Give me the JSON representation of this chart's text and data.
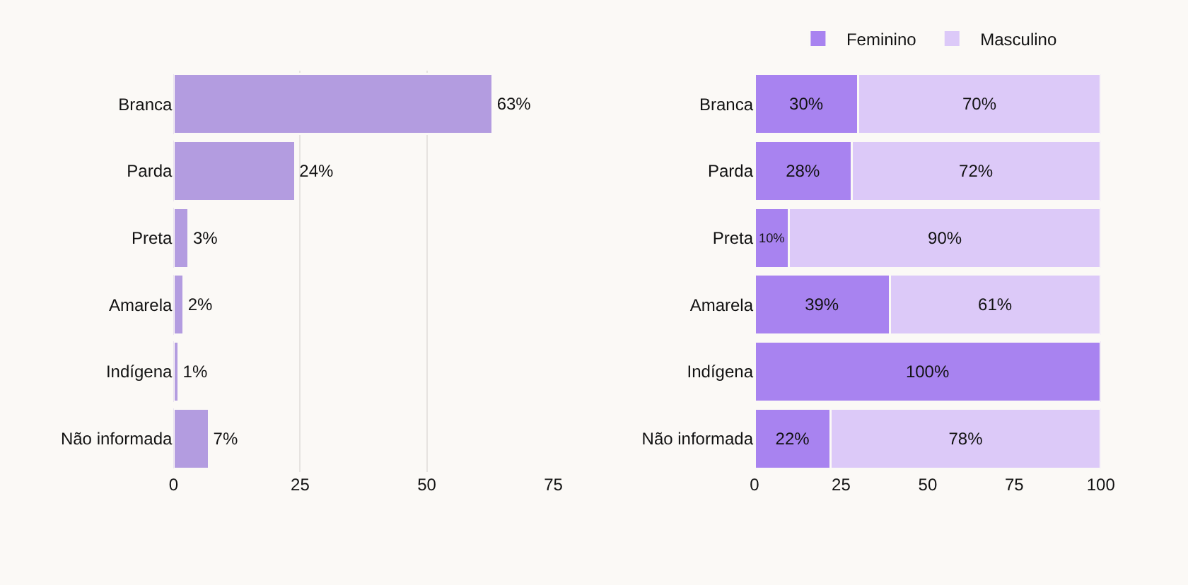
{
  "chart_data": [
    {
      "type": "bar",
      "orientation": "horizontal",
      "categories": [
        "Branca",
        "Parda",
        "Preta",
        "Amarela",
        "Indígena",
        "Não informada"
      ],
      "series": [
        {
          "color": "#b39ce0",
          "values": [
            63,
            24,
            3,
            2,
            1,
            7
          ],
          "value_labels": [
            "63%",
            "24%",
            "3%",
            "2%",
            "1%",
            "7%"
          ]
        }
      ],
      "xlim": [
        0,
        75
      ],
      "xticks": [
        0,
        25,
        50,
        75
      ],
      "grid": "x",
      "legend": false
    },
    {
      "type": "bar",
      "orientation": "horizontal",
      "stacked": true,
      "categories": [
        "Branca",
        "Parda",
        "Preta",
        "Amarela",
        "Indígena",
        "Não informada"
      ],
      "series": [
        {
          "name": "Feminino",
          "color": "#a883f0",
          "values": [
            30,
            28,
            10,
            39,
            100,
            22
          ],
          "value_labels": [
            "30%",
            "28%",
            "10%",
            "39%",
            "100%",
            "22%"
          ]
        },
        {
          "name": "Masculino",
          "color": "#dcc9f8",
          "values": [
            70,
            72,
            90,
            61,
            null,
            78
          ],
          "value_labels": [
            "70%",
            "72%",
            "90%",
            "61%",
            null,
            "78%"
          ]
        }
      ],
      "xlim": [
        0,
        100
      ],
      "xticks": [
        0,
        25,
        50,
        75,
        100
      ],
      "grid": false,
      "legend": "top"
    }
  ]
}
